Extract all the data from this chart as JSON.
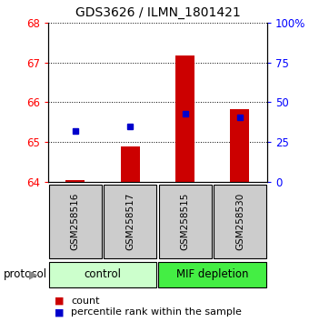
{
  "title": "GDS3626 / ILMN_1801421",
  "samples": [
    "GSM258516",
    "GSM258517",
    "GSM258515",
    "GSM258530"
  ],
  "bar_bottoms": [
    64.0,
    64.0,
    64.0,
    64.0
  ],
  "bar_tops": [
    64.05,
    64.88,
    67.18,
    65.82
  ],
  "bar_color": "#cc0000",
  "dot_values": [
    65.28,
    65.4,
    65.72,
    65.62
  ],
  "dot_color": "#0000cc",
  "ylim_left": [
    64,
    68
  ],
  "ylim_right": [
    0,
    100
  ],
  "yticks_left": [
    64,
    65,
    66,
    67,
    68
  ],
  "yticks_right": [
    0,
    25,
    50,
    75,
    100
  ],
  "yticklabels_right": [
    "0",
    "25",
    "50",
    "75",
    "100%"
  ],
  "groups": [
    {
      "label": "control",
      "n_samples": 2,
      "color": "#ccffcc"
    },
    {
      "label": "MIF depletion",
      "n_samples": 2,
      "color": "#44ee44"
    }
  ],
  "protocol_label": "protocol",
  "legend_count_label": "count",
  "legend_pct_label": "percentile rank within the sample",
  "bar_width": 0.35,
  "sample_box_color": "#cccccc",
  "title_fontsize": 10,
  "tick_fontsize": 8.5
}
